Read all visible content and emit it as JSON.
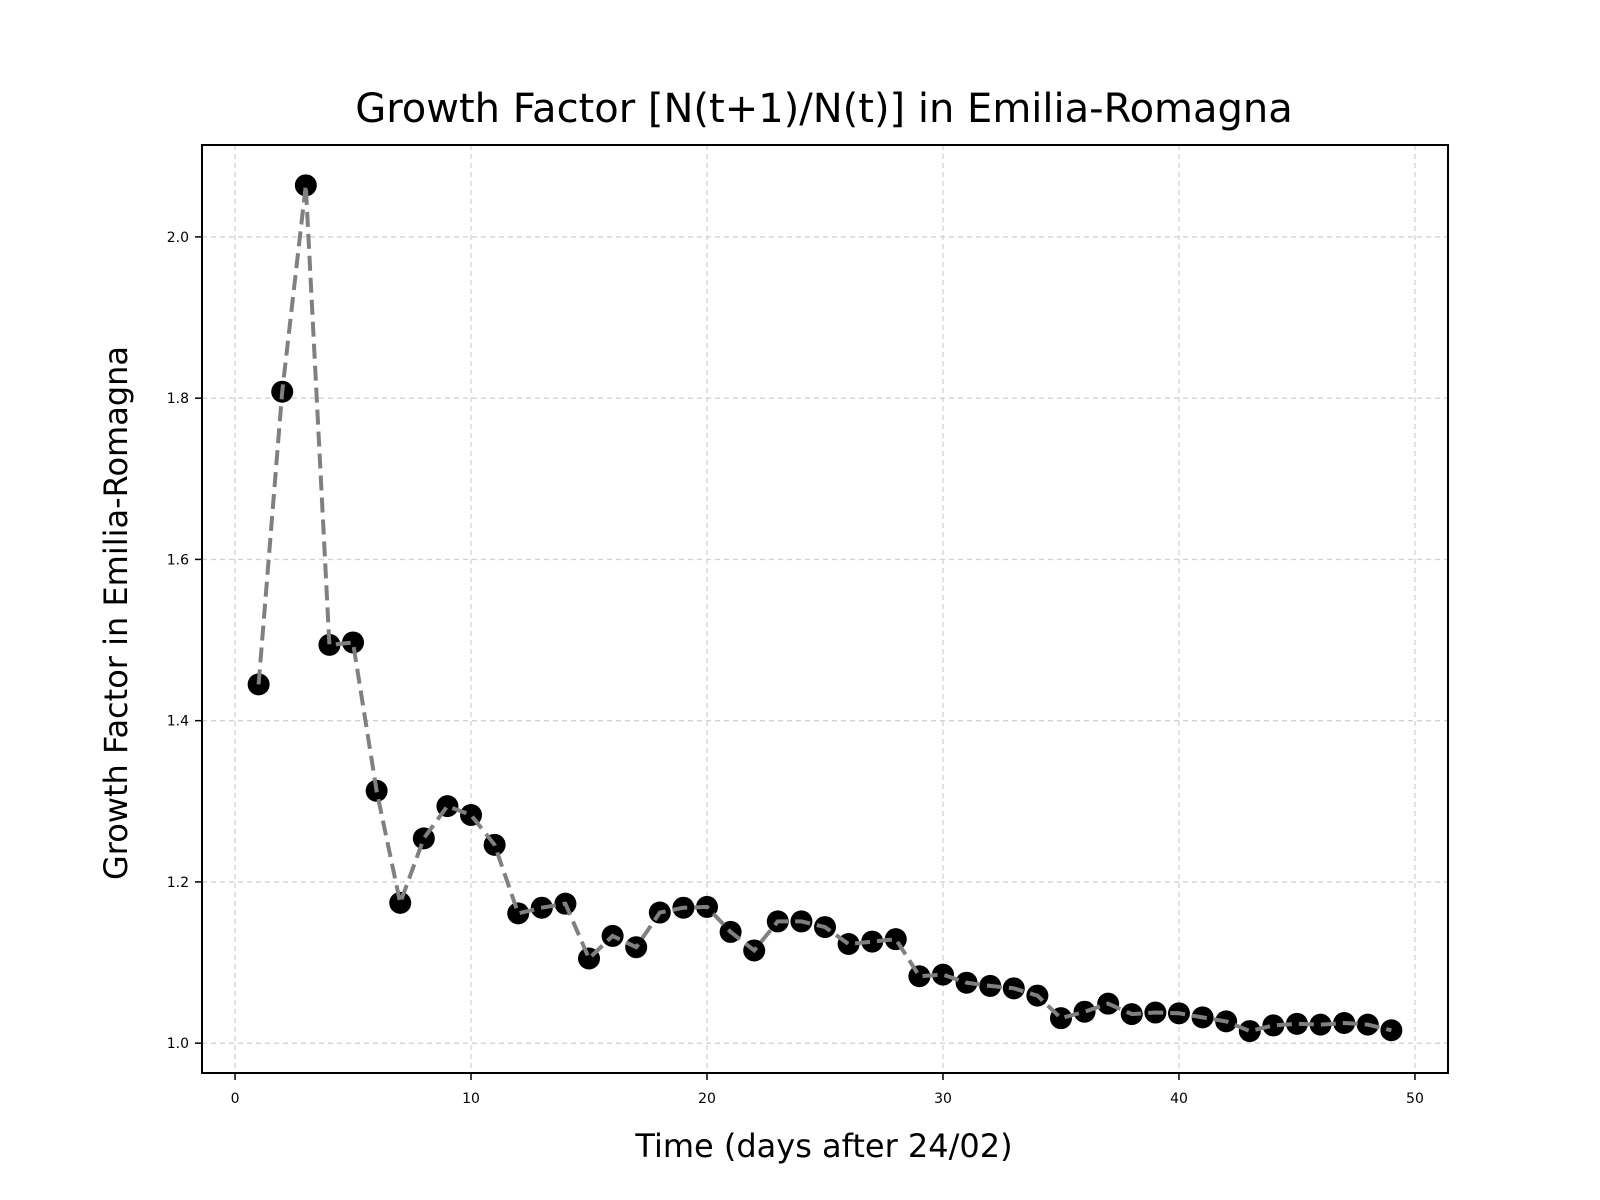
{
  "chart_data": {
    "type": "line",
    "title": "Growth Factor [N(t+1)/N(t)] in Emilia-Romagna",
    "xlabel": "Time (days after 24/02)",
    "ylabel": "Growth Factor in Emilia-Romagna",
    "xlim": [
      -1.4,
      51.4
    ],
    "ylim": [
      0.963,
      2.114
    ],
    "xticks": [
      0,
      10,
      20,
      30,
      40,
      50
    ],
    "yticks": [
      1.0,
      1.2,
      1.4,
      1.6,
      1.8,
      2.0
    ],
    "xtick_labels": [
      "0",
      "10",
      "20",
      "30",
      "40",
      "50"
    ],
    "ytick_labels": [
      "1.0",
      "1.2",
      "1.4",
      "1.6",
      "1.8",
      "2.0"
    ],
    "grid": true,
    "legend": "none",
    "series": [
      {
        "marker_color": "#000000",
        "line_color": "#808080",
        "line_style": "dashed",
        "x": [
          1,
          2,
          3,
          4,
          5,
          6,
          7,
          8,
          9,
          10,
          11,
          12,
          13,
          14,
          15,
          16,
          17,
          18,
          19,
          20,
          21,
          22,
          23,
          24,
          25,
          26,
          27,
          28,
          29,
          30,
          31,
          32,
          33,
          34,
          35,
          36,
          37,
          38,
          39,
          40,
          41,
          42,
          43,
          44,
          45,
          46,
          47,
          48,
          49
        ],
        "y": [
          1.445,
          1.808,
          2.064,
          1.494,
          1.497,
          1.313,
          1.174,
          1.254,
          1.294,
          1.283,
          1.246,
          1.161,
          1.168,
          1.173,
          1.105,
          1.133,
          1.119,
          1.162,
          1.168,
          1.169,
          1.138,
          1.115,
          1.151,
          1.151,
          1.144,
          1.123,
          1.126,
          1.129,
          1.083,
          1.085,
          1.075,
          1.071,
          1.068,
          1.059,
          1.031,
          1.039,
          1.049,
          1.036,
          1.038,
          1.037,
          1.032,
          1.027,
          1.015,
          1.022,
          1.024,
          1.023,
          1.025,
          1.023,
          1.016
        ]
      }
    ]
  }
}
